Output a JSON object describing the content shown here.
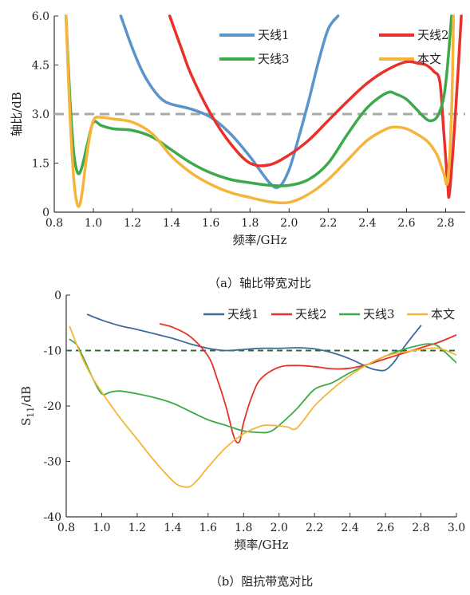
{
  "chart_data": [
    {
      "type": "line",
      "caption": "（a）轴比带宽对比",
      "xlabel": "频率/GHz",
      "ylabel": "轴比/dB",
      "xlim": [
        0.8,
        2.9
      ],
      "ylim": [
        0,
        6.0
      ],
      "xticks": [
        "0.8",
        "1.0",
        "1.2",
        "1.4",
        "1.6",
        "1.8",
        "2.0",
        "2.2",
        "2.4",
        "2.6",
        "2.8"
      ],
      "xtick_values": [
        0.8,
        1.0,
        1.2,
        1.4,
        1.6,
        1.8,
        2.0,
        2.2,
        2.4,
        2.6,
        2.8
      ],
      "yticks": [
        "0",
        "1.5",
        "3.0",
        "4.5",
        "6.0"
      ],
      "ytick_values": [
        0,
        1.5,
        3.0,
        4.5,
        6.0
      ],
      "grid": false,
      "legend_position": "top-right",
      "reference_line": {
        "y": 3.0,
        "style": "dashed",
        "color": "#a8a8a8"
      },
      "series": [
        {
          "name": "天线1",
          "color": "#5b93cf",
          "x": [
            1.14,
            1.2,
            1.25,
            1.3,
            1.35,
            1.4,
            1.5,
            1.6,
            1.7,
            1.8,
            1.9,
            1.95,
            2.0,
            2.05,
            2.1,
            2.15,
            2.2,
            2.25
          ],
          "y": [
            6.0,
            5.0,
            4.3,
            3.8,
            3.45,
            3.3,
            3.15,
            2.9,
            2.4,
            1.7,
            0.9,
            0.78,
            1.3,
            2.3,
            3.4,
            4.6,
            5.6,
            6.0
          ]
        },
        {
          "name": "天线2",
          "color": "#e8312b",
          "x": [
            1.39,
            1.45,
            1.5,
            1.6,
            1.7,
            1.8,
            1.9,
            2.0,
            2.1,
            2.2,
            2.3,
            2.4,
            2.5,
            2.6,
            2.66,
            2.7,
            2.74,
            2.77,
            2.79,
            2.81,
            2.82,
            2.85,
            2.88
          ],
          "y": [
            6.0,
            5.0,
            4.2,
            3.0,
            2.1,
            1.5,
            1.45,
            1.75,
            2.2,
            2.8,
            3.4,
            3.95,
            4.35,
            4.6,
            4.55,
            4.5,
            4.3,
            4.0,
            2.5,
            0.9,
            0.6,
            3.0,
            6.0
          ]
        },
        {
          "name": "天线3",
          "color": "#3daa4a",
          "x": [
            0.86,
            0.88,
            0.9,
            0.92,
            0.94,
            0.97,
            1.0,
            1.04,
            1.1,
            1.2,
            1.3,
            1.4,
            1.5,
            1.6,
            1.7,
            1.8,
            1.9,
            2.0,
            2.1,
            2.2,
            2.3,
            2.4,
            2.5,
            2.55,
            2.6,
            2.65,
            2.7,
            2.73,
            2.76,
            2.79,
            2.81,
            2.83
          ],
          "y": [
            6.0,
            3.5,
            1.8,
            1.2,
            1.35,
            2.1,
            2.75,
            2.65,
            2.55,
            2.5,
            2.3,
            1.9,
            1.5,
            1.2,
            1.0,
            0.9,
            0.82,
            0.82,
            1.0,
            1.5,
            2.4,
            3.2,
            3.65,
            3.6,
            3.45,
            3.15,
            2.85,
            2.8,
            2.95,
            3.5,
            4.5,
            6.0
          ]
        },
        {
          "name": "本文",
          "color": "#f5b43a",
          "x": [
            0.86,
            0.88,
            0.9,
            0.92,
            0.94,
            0.97,
            1.0,
            1.04,
            1.1,
            1.2,
            1.3,
            1.4,
            1.5,
            1.6,
            1.7,
            1.8,
            1.9,
            2.0,
            2.1,
            2.2,
            2.3,
            2.4,
            2.5,
            2.55,
            2.6,
            2.65,
            2.7,
            2.73,
            2.76,
            2.79,
            2.81,
            2.83,
            2.84
          ],
          "y": [
            6.0,
            3.0,
            1.0,
            0.2,
            0.5,
            1.9,
            2.8,
            2.9,
            2.85,
            2.75,
            2.4,
            1.7,
            1.2,
            0.85,
            0.6,
            0.45,
            0.32,
            0.3,
            0.55,
            1.0,
            1.6,
            2.2,
            2.55,
            2.6,
            2.55,
            2.4,
            2.2,
            2.0,
            1.7,
            1.2,
            0.95,
            3.0,
            6.0
          ]
        }
      ]
    },
    {
      "type": "line",
      "caption": "（b）阻抗带宽对比",
      "xlabel": "频率/GHz",
      "ylabel_main": "S",
      "ylabel_sub": "11",
      "ylabel_unit": "/dB",
      "xlim": [
        0.8,
        3.0
      ],
      "ylim": [
        -40,
        0
      ],
      "xticks": [
        "0.8",
        "1.0",
        "1.2",
        "1.4",
        "1.6",
        "1.8",
        "2.0",
        "2.2",
        "2.4",
        "2.6",
        "2.8",
        "3.0"
      ],
      "xtick_values": [
        0.8,
        1.0,
        1.2,
        1.4,
        1.6,
        1.8,
        2.0,
        2.2,
        2.4,
        2.6,
        2.8,
        3.0
      ],
      "yticks": [
        "0",
        "-10",
        "-20",
        "-30",
        "-40"
      ],
      "ytick_values": [
        0,
        -10,
        -20,
        -30,
        -40
      ],
      "grid": false,
      "legend_position": "top-right",
      "reference_line": {
        "y": -10,
        "style": "dashed",
        "color": "#2f6b2f"
      },
      "series": [
        {
          "name": "天线1",
          "color": "#3d6b9a",
          "x": [
            0.92,
            1.0,
            1.1,
            1.2,
            1.3,
            1.4,
            1.5,
            1.6,
            1.7,
            1.8,
            1.9,
            2.0,
            2.1,
            2.2,
            2.3,
            2.4,
            2.5,
            2.55,
            2.6,
            2.65,
            2.7,
            2.75,
            2.8
          ],
          "y": [
            -3.5,
            -4.5,
            -5.5,
            -6.2,
            -7.0,
            -7.8,
            -8.8,
            -9.6,
            -10.0,
            -9.8,
            -9.6,
            -9.6,
            -9.5,
            -9.7,
            -10.4,
            -11.5,
            -13.0,
            -13.5,
            -13.5,
            -12.0,
            -9.6,
            -7.5,
            -5.5
          ]
        },
        {
          "name": "天线2",
          "color": "#e8312b",
          "x": [
            1.33,
            1.4,
            1.5,
            1.6,
            1.65,
            1.7,
            1.74,
            1.76,
            1.78,
            1.8,
            1.85,
            1.9,
            2.0,
            2.1,
            2.2,
            2.3,
            2.4,
            2.5,
            2.6,
            2.7,
            2.8,
            2.9,
            3.0
          ],
          "y": [
            -5.2,
            -5.8,
            -7.5,
            -11.0,
            -15.0,
            -20.0,
            -25.0,
            -26.5,
            -26.2,
            -23.0,
            -18.0,
            -15.0,
            -13.0,
            -12.7,
            -12.9,
            -13.3,
            -13.2,
            -12.5,
            -11.5,
            -10.5,
            -9.5,
            -8.5,
            -7.2
          ]
        },
        {
          "name": "天线3",
          "color": "#3daa4a",
          "x": [
            0.82,
            0.86,
            0.9,
            0.95,
            1.0,
            1.05,
            1.1,
            1.2,
            1.3,
            1.4,
            1.5,
            1.6,
            1.7,
            1.8,
            1.9,
            1.95,
            2.0,
            2.1,
            2.2,
            2.3,
            2.4,
            2.5,
            2.6,
            2.7,
            2.8,
            2.85,
            2.9,
            3.0
          ],
          "y": [
            -8.0,
            -9.0,
            -11.5,
            -15.0,
            -17.8,
            -17.5,
            -17.3,
            -17.8,
            -18.5,
            -19.5,
            -21.0,
            -22.5,
            -23.5,
            -24.5,
            -24.8,
            -24.6,
            -23.5,
            -20.5,
            -17.0,
            -15.8,
            -14.0,
            -12.5,
            -11.0,
            -9.8,
            -9.0,
            -8.8,
            -9.3,
            -12.2
          ]
        },
        {
          "name": "本文",
          "color": "#f5b43a",
          "x": [
            0.82,
            0.86,
            0.9,
            0.95,
            1.0,
            1.1,
            1.2,
            1.3,
            1.4,
            1.45,
            1.5,
            1.55,
            1.6,
            1.7,
            1.8,
            1.9,
            1.95,
            2.0,
            2.05,
            2.1,
            2.2,
            2.3,
            2.4,
            2.5,
            2.6,
            2.7,
            2.8,
            2.9,
            3.0
          ],
          "y": [
            -5.7,
            -9.0,
            -12.0,
            -15.0,
            -17.5,
            -22.0,
            -26.0,
            -30.0,
            -33.5,
            -34.5,
            -34.5,
            -33.0,
            -31.0,
            -27.5,
            -25.0,
            -23.6,
            -23.5,
            -23.6,
            -23.8,
            -24.0,
            -20.0,
            -17.0,
            -14.5,
            -12.5,
            -11.0,
            -10.3,
            -9.8,
            -9.6,
            -10.8
          ]
        }
      ]
    }
  ]
}
